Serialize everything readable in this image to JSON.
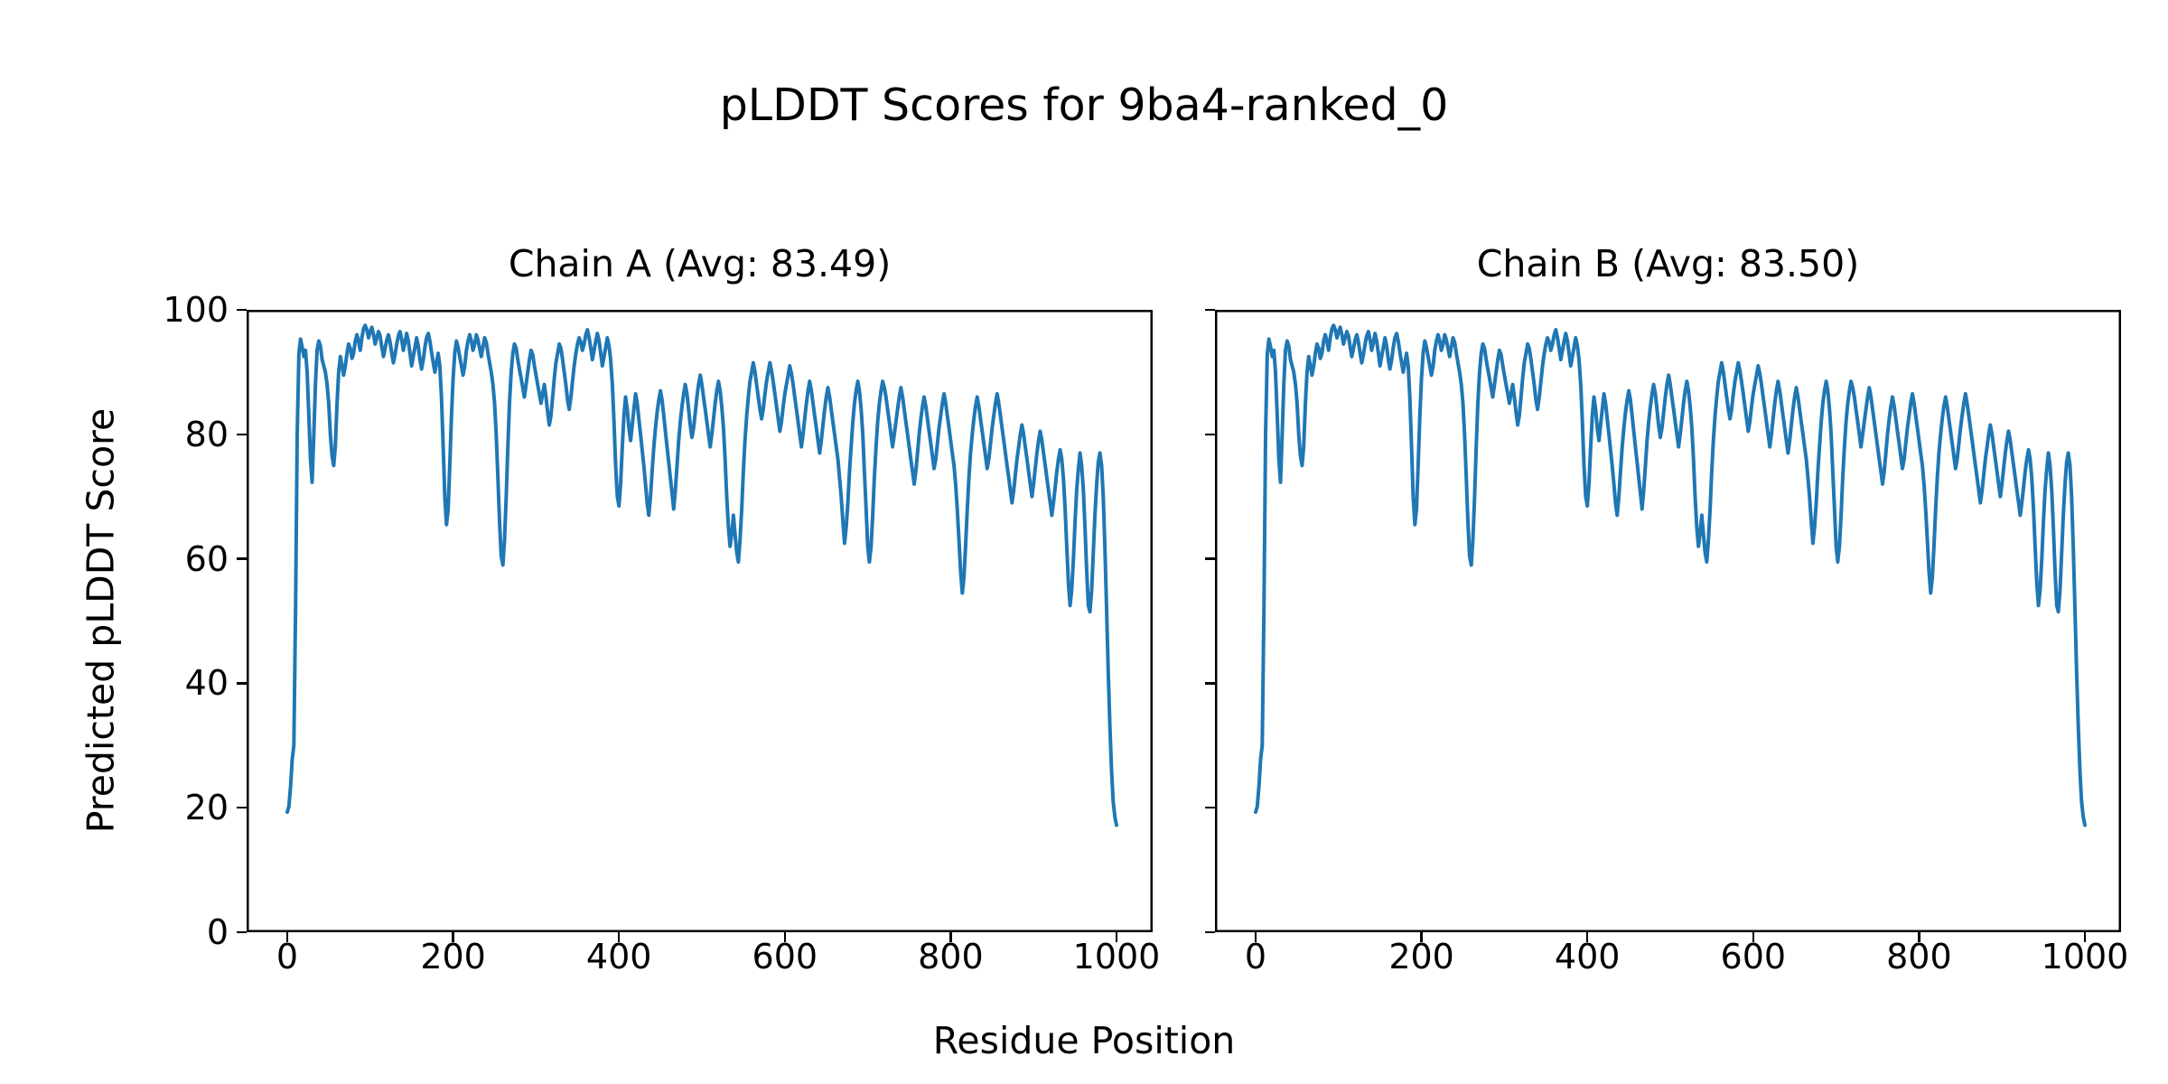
{
  "chart_data": {
    "type": "line",
    "title": "pLDDT Scores for 9ba4-ranked_0",
    "xlabel": "Residue Position",
    "ylabel": "Predicted pLDDT Score",
    "xticks": [
      0,
      200,
      400,
      600,
      800,
      1000
    ],
    "yticks": [
      0,
      20,
      40,
      60,
      80,
      100
    ],
    "xlim": [
      -48,
      1048
    ],
    "ylim": [
      0,
      100
    ],
    "grid": false,
    "legend": "none",
    "line_color": "#1f77b4",
    "axes_color": "#000000",
    "background_color": "#ffffff",
    "subplots": [
      {
        "chain": "A",
        "title": "Chain A (Avg: 83.49)",
        "avg_plddt": 83.49
      },
      {
        "chain": "B",
        "title": "Chain B (Avg: 83.50)",
        "avg_plddt": 83.5
      }
    ],
    "series_shared": true,
    "x": [
      0,
      2,
      4,
      6,
      8,
      10,
      12,
      14,
      16,
      18,
      20,
      22,
      24,
      26,
      28,
      30,
      32,
      34,
      36,
      38,
      40,
      42,
      44,
      46,
      48,
      50,
      52,
      54,
      56,
      58,
      60,
      62,
      64,
      66,
      68,
      70,
      72,
      74,
      76,
      78,
      80,
      82,
      84,
      86,
      88,
      90,
      92,
      94,
      96,
      98,
      100,
      102,
      104,
      106,
      108,
      110,
      112,
      114,
      116,
      118,
      120,
      122,
      124,
      126,
      128,
      130,
      132,
      134,
      136,
      138,
      140,
      142,
      144,
      146,
      148,
      150,
      152,
      154,
      156,
      158,
      160,
      162,
      164,
      166,
      168,
      170,
      172,
      174,
      176,
      178,
      180,
      182,
      184,
      186,
      188,
      190,
      192,
      194,
      196,
      198,
      200,
      202,
      204,
      206,
      208,
      210,
      212,
      214,
      216,
      218,
      220,
      222,
      224,
      226,
      228,
      230,
      232,
      234,
      236,
      238,
      240,
      242,
      244,
      246,
      248,
      250,
      252,
      254,
      256,
      258,
      260,
      262,
      264,
      266,
      268,
      270,
      272,
      274,
      276,
      278,
      280,
      282,
      284,
      286,
      288,
      290,
      292,
      294,
      296,
      298,
      300,
      302,
      304,
      306,
      308,
      310,
      312,
      314,
      316,
      318,
      320,
      322,
      324,
      326,
      328,
      330,
      332,
      334,
      336,
      338,
      340,
      342,
      344,
      346,
      348,
      350,
      352,
      354,
      356,
      358,
      360,
      362,
      364,
      366,
      368,
      370,
      372,
      374,
      376,
      378,
      380,
      382,
      384,
      386,
      388,
      390,
      392,
      394,
      396,
      398,
      400,
      402,
      404,
      406,
      408,
      410,
      412,
      414,
      416,
      418,
      420,
      422,
      424,
      426,
      428,
      430,
      432,
      434,
      436,
      438,
      440,
      442,
      444,
      446,
      448,
      450,
      452,
      454,
      456,
      458,
      460,
      462,
      464,
      466,
      468,
      470,
      472,
      474,
      476,
      478,
      480,
      482,
      484,
      486,
      488,
      490,
      492,
      494,
      496,
      498,
      500,
      502,
      504,
      506,
      508,
      510,
      512,
      514,
      516,
      518,
      520,
      522,
      524,
      526,
      528,
      530,
      532,
      534,
      536,
      538,
      540,
      542,
      544,
      546,
      548,
      550,
      552,
      554,
      556,
      558,
      560,
      562,
      564,
      566,
      568,
      570,
      572,
      574,
      576,
      578,
      580,
      582,
      584,
      586,
      588,
      590,
      592,
      594,
      596,
      598,
      600,
      602,
      604,
      606,
      608,
      610,
      612,
      614,
      616,
      618,
      620,
      622,
      624,
      626,
      628,
      630,
      632,
      634,
      636,
      638,
      640,
      642,
      644,
      646,
      648,
      650,
      652,
      654,
      656,
      658,
      660,
      662,
      664,
      666,
      668,
      670,
      672,
      674,
      676,
      678,
      680,
      682,
      684,
      686,
      688,
      690,
      692,
      694,
      696,
      698,
      700,
      702,
      704,
      706,
      708,
      710,
      712,
      714,
      716,
      718,
      720,
      722,
      724,
      726,
      728,
      730,
      732,
      734,
      736,
      738,
      740,
      742,
      744,
      746,
      748,
      750,
      752,
      754,
      756,
      758,
      760,
      762,
      764,
      766,
      768,
      770,
      772,
      774,
      776,
      778,
      780,
      782,
      784,
      786,
      788,
      790,
      792,
      794,
      796,
      798,
      800,
      802,
      804,
      806,
      808,
      810,
      812,
      814,
      816,
      818,
      820,
      822,
      824,
      826,
      828,
      830,
      832,
      834,
      836,
      838,
      840,
      842,
      844,
      846,
      848,
      850,
      852,
      854,
      856,
      858,
      860,
      862,
      864,
      866,
      868,
      870,
      872,
      874,
      876,
      878,
      880,
      882,
      884,
      886,
      888,
      890,
      892,
      894,
      896,
      898,
      900,
      902,
      904,
      906,
      908,
      910,
      912,
      914,
      916,
      918,
      920,
      922,
      924,
      926,
      928,
      930,
      932,
      934,
      936,
      938,
      940,
      942,
      944,
      946,
      948,
      950,
      952,
      954,
      956,
      958,
      960,
      962,
      964,
      966,
      968,
      970,
      972,
      974,
      976,
      978,
      980,
      982,
      984,
      986,
      988,
      990,
      992,
      994,
      996,
      998,
      1000
    ],
    "y": [
      19.3,
      20.2,
      23.5,
      27.8,
      30,
      52,
      80,
      93,
      95.3,
      94,
      92.5,
      93.5,
      90,
      83,
      76,
      72.3,
      80,
      88,
      93.5,
      95,
      94.2,
      92,
      91,
      90,
      88,
      85,
      80,
      76.5,
      75,
      78,
      85,
      90,
      92.5,
      91,
      89.5,
      91,
      93,
      94.5,
      93.8,
      92.2,
      93,
      95,
      96,
      95,
      93.5,
      95.5,
      97,
      97.5,
      96.8,
      95.5,
      96.5,
      97.2,
      96,
      94.5,
      95.5,
      96.5,
      95.8,
      94,
      92.5,
      93.8,
      95.2,
      96,
      94.8,
      93,
      91.5,
      92.8,
      94.5,
      95.8,
      96.5,
      95.2,
      93.5,
      94.8,
      96.2,
      95,
      93,
      91,
      92.5,
      94,
      95.5,
      94.2,
      92,
      90.5,
      92,
      94,
      95.5,
      96.2,
      95,
      93.2,
      91.5,
      90,
      91.5,
      93,
      91,
      86,
      78,
      70,
      65.5,
      68,
      75,
      83,
      89,
      93,
      95,
      94,
      92.5,
      91,
      89.5,
      91,
      93.5,
      95,
      96,
      95,
      93.5,
      94.5,
      96,
      95.2,
      93.8,
      92.5,
      94,
      95.5,
      94.8,
      93,
      91.5,
      90,
      88,
      85,
      80,
      73,
      66,
      60.5,
      59,
      63,
      70,
      78,
      85,
      90,
      93,
      94.5,
      93.8,
      92,
      90.5,
      89,
      87.5,
      86,
      88,
      90,
      92,
      93.5,
      92.8,
      91,
      89.5,
      88,
      86.5,
      85,
      86.5,
      88,
      86,
      83.5,
      81.5,
      83,
      86,
      89,
      91.5,
      93,
      94.5,
      93.8,
      92,
      90,
      88,
      85.5,
      84,
      86,
      88.5,
      91,
      93,
      94.5,
      95.5,
      94.8,
      93.5,
      94.5,
      96,
      96.8,
      95.5,
      93.8,
      92,
      93.5,
      95,
      96.2,
      95,
      93,
      91,
      92.5,
      94,
      95.5,
      94.2,
      92,
      88,
      82,
      75,
      70,
      68.5,
      72,
      78,
      83,
      86,
      84,
      81,
      79,
      81.5,
      84,
      86.5,
      85,
      82.5,
      80,
      77.5,
      75,
      72,
      69,
      67,
      70,
      74,
      78,
      81,
      83.5,
      85.5,
      87,
      85.5,
      83,
      80.5,
      78,
      75.5,
      73,
      70.5,
      68,
      71,
      75,
      79,
      82,
      84.5,
      86.5,
      88,
      86.5,
      84,
      81.5,
      79.5,
      81,
      83.5,
      86,
      88,
      89.5,
      88,
      86,
      84,
      82,
      80,
      78,
      80,
      82.5,
      85,
      87,
      88.5,
      87,
      84.5,
      81,
      76,
      70,
      65,
      62,
      64,
      67,
      64,
      61,
      59.5,
      63,
      68,
      74,
      79,
      83,
      86,
      88.5,
      90,
      91.5,
      90,
      88,
      86,
      84,
      82.5,
      84,
      86.5,
      88.5,
      90,
      91.5,
      90.2,
      88.5,
      86.5,
      84.5,
      82.5,
      80.5,
      82,
      84.5,
      86.5,
      88,
      89.5,
      91,
      89.8,
      88,
      86,
      84,
      82,
      80,
      78,
      80,
      82.5,
      85,
      87,
      88.5,
      87,
      85,
      83,
      81,
      79,
      77,
      79,
      81.5,
      84,
      86,
      87.5,
      86,
      84,
      82,
      80,
      78,
      76,
      73,
      70,
      66,
      62.5,
      65,
      69,
      74,
      78,
      82,
      85,
      87,
      88.5,
      87,
      84,
      80,
      74,
      68,
      62,
      59.5,
      62,
      67,
      73,
      78,
      82,
      85,
      87,
      88.5,
      87.5,
      86,
      84,
      82,
      80,
      78,
      80,
      82,
      84,
      86,
      87.5,
      86,
      84,
      82,
      80,
      78,
      76,
      74,
      72,
      74,
      77,
      80,
      82.5,
      84.5,
      86,
      84.5,
      82.5,
      80.5,
      78.5,
      76.5,
      74.5,
      76,
      78.5,
      81,
      83,
      85,
      86.5,
      85,
      83,
      81,
      79,
      77,
      75,
      72,
      68,
      63,
      58,
      54.5,
      57,
      62,
      68,
      73,
      77,
      80,
      82.5,
      84.5,
      86,
      84.5,
      82.5,
      80.5,
      78.5,
      76.5,
      74.5,
      76,
      78.5,
      81,
      83,
      85,
      86.5,
      85,
      83,
      81,
      79,
      77,
      75,
      73,
      71,
      69,
      71,
      73.5,
      76,
      78,
      80,
      81.5,
      80,
      78,
      76,
      74,
      72,
      70,
      72,
      74.5,
      77,
      79,
      80.5,
      79,
      77,
      75,
      73,
      71,
      69,
      67,
      69,
      71.5,
      74,
      76,
      77.5,
      76,
      73,
      68,
      62,
      56,
      52.5,
      55,
      60,
      66,
      71,
      74.5,
      77,
      75,
      71,
      65,
      58,
      52.5,
      51.5,
      55,
      61,
      67,
      72,
      75.5,
      77,
      75,
      70,
      62,
      52,
      42,
      33,
      26,
      21,
      18.5,
      17.2
    ]
  }
}
